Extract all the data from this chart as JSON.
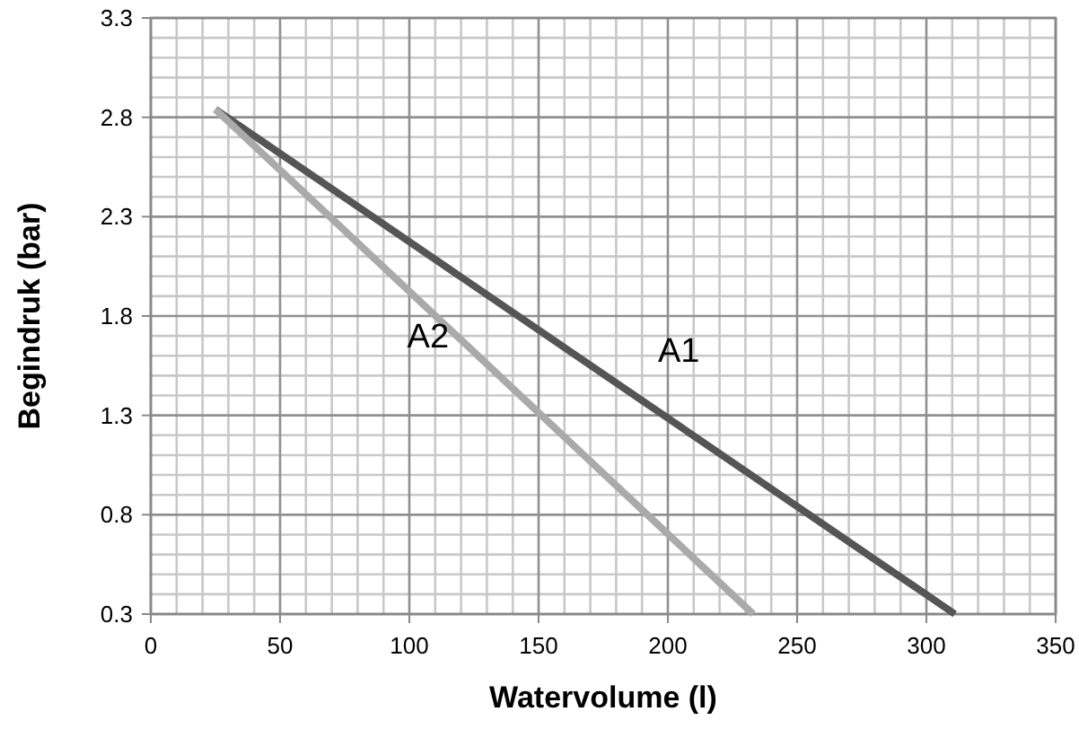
{
  "chart_data": {
    "type": "line",
    "xlabel": "Watervolume (l)",
    "ylabel": "Begindruk (bar)",
    "xlim": [
      0,
      350
    ],
    "xticks": [
      0,
      50,
      100,
      150,
      200,
      250,
      300,
      350
    ],
    "ylim": [
      0.3,
      3.3
    ],
    "yticks": [
      0.3,
      0.8,
      1.3,
      1.8,
      2.3,
      2.8,
      3.3
    ],
    "grid": true,
    "marker": "none",
    "line_style": "solid",
    "series": [
      {
        "name": "A1",
        "color": "#555555",
        "x": [
          25,
          311
        ],
        "values": [
          2.84,
          0.3
        ]
      },
      {
        "name": "A2",
        "color": "#aaaaaa",
        "x": [
          25,
          233
        ],
        "values": [
          2.84,
          0.3
        ]
      }
    ]
  }
}
